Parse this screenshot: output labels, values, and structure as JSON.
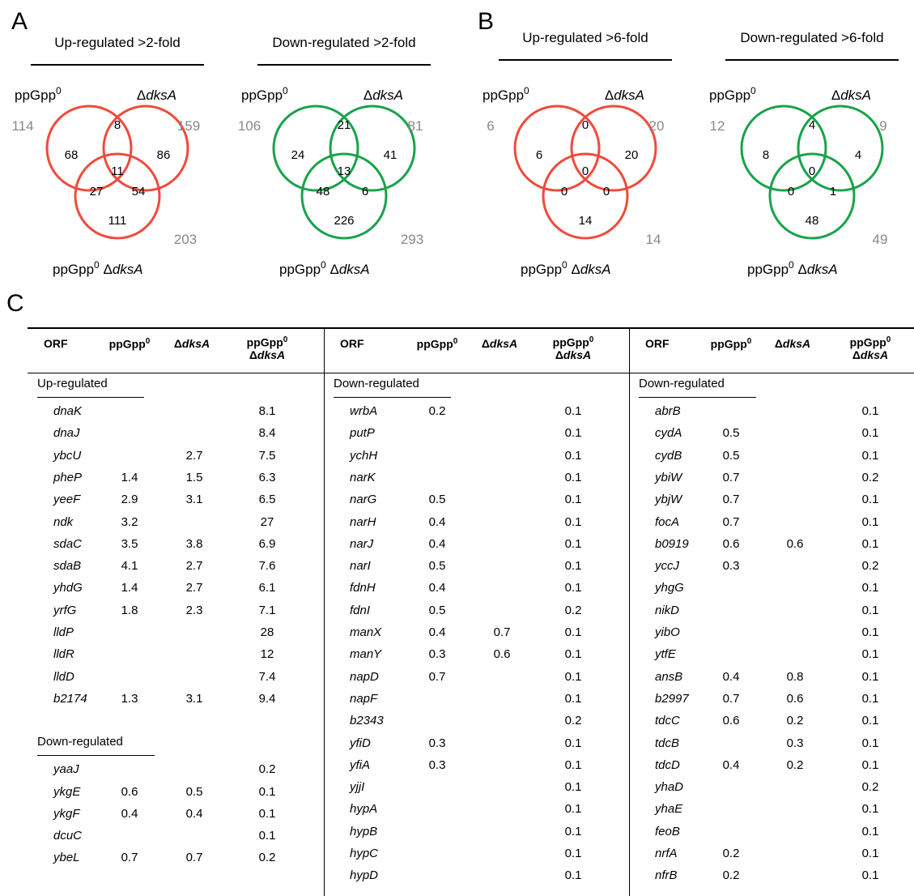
{
  "panels": {
    "a": "A",
    "b": "B",
    "c": "C"
  },
  "venns": [
    {
      "title": "Up-regulated >2-fold",
      "color": "#f04a3c",
      "label_a": "ppGpp",
      "label_a_sup": "0",
      "label_b_delta": "Δ",
      "label_b": "dksA",
      "label_c": "ppGpp",
      "label_c_sup": "0",
      "label_c_delta": "Δ",
      "label_c_gene": "dksA",
      "total_a": "114",
      "total_b": "159",
      "total_c": "203",
      "regions": {
        "a_only": "68",
        "ab": "8",
        "b_only": "86",
        "abc": "11",
        "ac": "27",
        "bc": "54",
        "c_only": "111"
      }
    },
    {
      "title": "Down-regulated >2-fold",
      "color": "#18a34a",
      "label_a": "ppGpp",
      "label_a_sup": "0",
      "label_b_delta": "Δ",
      "label_b": "dksA",
      "label_c": "ppGpp",
      "label_c_sup": "0",
      "label_c_delta": "Δ",
      "label_c_gene": "dksA",
      "total_a": "106",
      "total_b": "81",
      "total_c": "293",
      "regions": {
        "a_only": "24",
        "ab": "21",
        "b_only": "41",
        "abc": "13",
        "ac": "48",
        "bc": "6",
        "c_only": "226"
      }
    },
    {
      "title": "Up-regulated >6-fold",
      "color": "#f04a3c",
      "label_a": "ppGpp",
      "label_a_sup": "0",
      "label_b_delta": "Δ",
      "label_b": "dksA",
      "label_c": "ppGpp",
      "label_c_sup": "0",
      "label_c_delta": "Δ",
      "label_c_gene": "dksA",
      "total_a": "6",
      "total_b": "20",
      "total_c": "14",
      "regions": {
        "a_only": "6",
        "ab": "0",
        "b_only": "20",
        "abc": "0",
        "ac": "0",
        "bc": "0",
        "c_only": "14"
      }
    },
    {
      "title": "Down-regulated >6-fold",
      "color": "#18a34a",
      "label_a": "ppGpp",
      "label_a_sup": "0",
      "label_b_delta": "Δ",
      "label_b": "dksA",
      "label_c": "ppGpp",
      "label_c_sup": "0",
      "label_c_delta": "Δ",
      "label_c_gene": "dksA",
      "total_a": "12",
      "total_b": "9",
      "total_c": "49",
      "regions": {
        "a_only": "8",
        "ab": "4",
        "b_only": "4",
        "abc": "0",
        "ac": "0",
        "bc": "1",
        "c_only": "48"
      }
    }
  ],
  "table": {
    "headers": {
      "orf": "ORF",
      "ppgpp": "ppGpp",
      "sup": "0",
      "delta": "Δ",
      "dksa": "dksA"
    },
    "columns": [
      {
        "sections": [
          {
            "title": "Up-regulated",
            "rows": [
              [
                "dnaK",
                "",
                "",
                "8.1"
              ],
              [
                "dnaJ",
                "",
                "",
                "8.4"
              ],
              [
                "ybcU",
                "",
                "2.7",
                "7.5"
              ],
              [
                "pheP",
                "1.4",
                "1.5",
                "6.3"
              ],
              [
                "yeeF",
                "2.9",
                "3.1",
                "6.5"
              ],
              [
                "ndk",
                "3.2",
                "",
                "27"
              ],
              [
                "sdaC",
                "3.5",
                "3.8",
                "6.9"
              ],
              [
                "sdaB",
                "4.1",
                "2.7",
                "7.6"
              ],
              [
                "yhdG",
                "1.4",
                "2.7",
                "6.1"
              ],
              [
                "yrfG",
                "1.8",
                "2.3",
                "7.1"
              ],
              [
                "lldP",
                "",
                "",
                "28"
              ],
              [
                "lldR",
                "",
                "",
                "12"
              ],
              [
                "lldD",
                "",
                "",
                "7.4"
              ],
              [
                "b2174",
                "1.3",
                "3.1",
                "9.4"
              ]
            ]
          },
          {
            "title": "Down-regulated",
            "rows": [
              [
                "yaaJ",
                "",
                "",
                "0.2"
              ],
              [
                "ykgE",
                "0.6",
                "0.5",
                "0.1"
              ],
              [
                "ykgF",
                "0.4",
                "0.4",
                "0.1"
              ],
              [
                "dcuC",
                "",
                "",
                "0.1"
              ],
              [
                "ybeL",
                "0.7",
                "0.7",
                "0.2"
              ]
            ]
          }
        ]
      },
      {
        "sections": [
          {
            "title": "Down-regulated",
            "rows": [
              [
                "wrbA",
                "0.2",
                "",
                "0.1"
              ],
              [
                "putP",
                "",
                "",
                "0.1"
              ],
              [
                "ychH",
                "",
                "",
                "0.1"
              ],
              [
                "narK",
                "",
                "",
                "0.1"
              ],
              [
                "narG",
                "0.5",
                "",
                "0.1"
              ],
              [
                "narH",
                "0.4",
                "",
                "0.1"
              ],
              [
                "narJ",
                "0.4",
                "",
                "0.1"
              ],
              [
                "narI",
                "0.5",
                "",
                "0.1"
              ],
              [
                "fdnH",
                "0.4",
                "",
                "0.1"
              ],
              [
                "fdnI",
                "0.5",
                "",
                "0.2"
              ],
              [
                "manX",
                "0.4",
                "0.7",
                "0.1"
              ],
              [
                "manY",
                "0.3",
                "0.6",
                "0.1"
              ],
              [
                "napD",
                "0.7",
                "",
                "0.1"
              ],
              [
                "napF",
                "",
                "",
                "0.1"
              ],
              [
                "b2343",
                "",
                "",
                "0.2"
              ],
              [
                "yfiD",
                "0.3",
                "",
                "0.1"
              ],
              [
                "yfiA",
                "0.3",
                "",
                "0.1"
              ],
              [
                "yjjI",
                "",
                "",
                "0.1"
              ],
              [
                "hypA",
                "",
                "",
                "0.1"
              ],
              [
                "hypB",
                "",
                "",
                "0.1"
              ],
              [
                "hypC",
                "",
                "",
                "0.1"
              ],
              [
                "hypD",
                "",
                "",
                "0.1"
              ]
            ]
          }
        ]
      },
      {
        "sections": [
          {
            "title": "Down-regulated",
            "rows": [
              [
                "abrB",
                "",
                "",
                "0.1"
              ],
              [
                "cydA",
                "0.5",
                "",
                "0.1"
              ],
              [
                "cydB",
                "0.5",
                "",
                "0.1"
              ],
              [
                "ybiW",
                "0.7",
                "",
                "0.2"
              ],
              [
                "ybjW",
                "0.7",
                "",
                "0.1"
              ],
              [
                "focA",
                "0.7",
                "",
                "0.1"
              ],
              [
                "b0919",
                "0.6",
                "0.6",
                "0.1"
              ],
              [
                "yccJ",
                "0.3",
                "",
                "0.2"
              ],
              [
                "yhgG",
                "",
                "",
                "0.1"
              ],
              [
                "nikD",
                "",
                "",
                "0.1"
              ],
              [
                "yibO",
                "",
                "",
                "0.1"
              ],
              [
                "ytfE",
                "",
                "",
                "0.1"
              ],
              [
                "ansB",
                "0.4",
                "0.8",
                "0.1"
              ],
              [
                "b2997",
                "0.7",
                "0.6",
                "0.1"
              ],
              [
                "tdcC",
                "0.6",
                "0.2",
                "0.1"
              ],
              [
                "tdcB",
                "",
                "0.3",
                "0.1"
              ],
              [
                "tdcD",
                "0.4",
                "0.2",
                "0.1"
              ],
              [
                "yhaD",
                "",
                "",
                "0.2"
              ],
              [
                "yhaE",
                "",
                "",
                "0.1"
              ],
              [
                "feoB",
                "",
                "",
                "0.1"
              ],
              [
                "nrfA",
                "0.2",
                "",
                "0.1"
              ],
              [
                "nfrB",
                "0.2",
                "",
                "0.1"
              ]
            ]
          }
        ]
      }
    ]
  }
}
